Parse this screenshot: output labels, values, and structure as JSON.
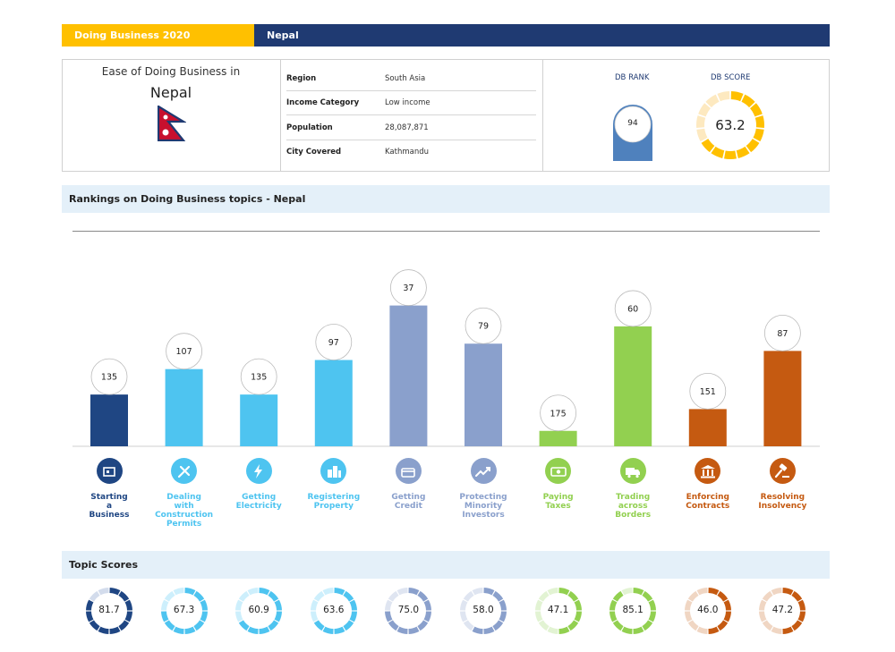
{
  "header": {
    "left": "Doing Business  2020",
    "right": "Nepal"
  },
  "profile": {
    "ease_label": "Ease of Doing Business in",
    "country": "Nepal",
    "rows": [
      {
        "k": "Region",
        "v": "South Asia"
      },
      {
        "k": "Income Category",
        "v": "Low income"
      },
      {
        "k": "Population",
        "v": "28,087,871"
      },
      {
        "k": "City Covered",
        "v": "Kathmandu"
      }
    ]
  },
  "db": {
    "rank_label": "DB RANK",
    "rank": "94",
    "score_label": "DB SCORE",
    "score": "63.2"
  },
  "rankings_title": "Rankings on Doing Business topics - Nepal",
  "scores_title": "Topic Scores",
  "colors": {
    "navy": "#1f4683",
    "sky": "#4ec4f0",
    "steel": "#8aa0cc",
    "green": "#92d050",
    "orange": "#c55a11",
    "gold": "#ffc000"
  },
  "chart_data": {
    "type": "bar",
    "categories": [
      "Starting a Business",
      "Dealing with Construction Permits",
      "Getting Electricity",
      "Registering Property",
      "Getting Credit",
      "Protecting Minority Investors",
      "Paying Taxes",
      "Trading across Borders",
      "Enforcing Contracts",
      "Resolving Insolvency"
    ],
    "label_lines": [
      [
        "Starting",
        "a",
        "Business"
      ],
      [
        "Dealing",
        "with",
        "Construction",
        "Permits"
      ],
      [
        "Getting",
        "Electricity"
      ],
      [
        "Registering",
        "Property"
      ],
      [
        "Getting",
        "Credit"
      ],
      [
        "Protecting",
        "Minority",
        "Investors"
      ],
      [
        "Paying",
        "Taxes"
      ],
      [
        "Trading",
        "across",
        "Borders"
      ],
      [
        "Enforcing",
        "Contracts"
      ],
      [
        "Resolving",
        "Insolvency"
      ]
    ],
    "ranks": [
      135,
      107,
      135,
      97,
      37,
      79,
      175,
      60,
      151,
      87
    ],
    "scores": [
      "81.7",
      "67.3",
      "60.9",
      "63.6",
      "75.0",
      "58.0",
      "47.1",
      "85.1",
      "46.0",
      "47.2"
    ],
    "bar_colors": [
      "#1f4683",
      "#4ec4f0",
      "#4ec4f0",
      "#4ec4f0",
      "#8aa0cc",
      "#8aa0cc",
      "#92d050",
      "#92d050",
      "#c55a11",
      "#c55a11"
    ],
    "label_colors": [
      "#1f4683",
      "#4ec4f0",
      "#4ec4f0",
      "#4ec4f0",
      "#8aa0cc",
      "#8aa0cc",
      "#92d050",
      "#92d050",
      "#c55a11",
      "#c55a11"
    ],
    "icons": [
      "building-icon",
      "tools-icon",
      "lightning-icon",
      "city-icon",
      "credit-card-icon",
      "trend-up-icon",
      "money-icon",
      "truck-icon",
      "courthouse-icon",
      "gavel-icon"
    ],
    "rank_scale_max": 190,
    "rank_note": "lower rank = taller bar"
  }
}
